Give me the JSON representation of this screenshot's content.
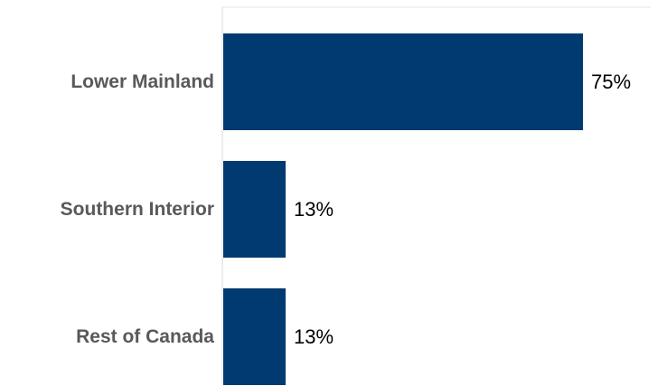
{
  "chart_data": {
    "type": "bar",
    "orientation": "horizontal",
    "categories": [
      "Lower Mainland",
      "Southern Interior",
      "Rest of Canada"
    ],
    "values": [
      75,
      13,
      13
    ],
    "value_labels": [
      "75%",
      "13%",
      "13%"
    ],
    "title": "",
    "xlabel": "",
    "ylabel": "",
    "xlim": [
      0,
      100
    ],
    "grid": false,
    "legend": "none",
    "bar_color": "#003A70"
  }
}
